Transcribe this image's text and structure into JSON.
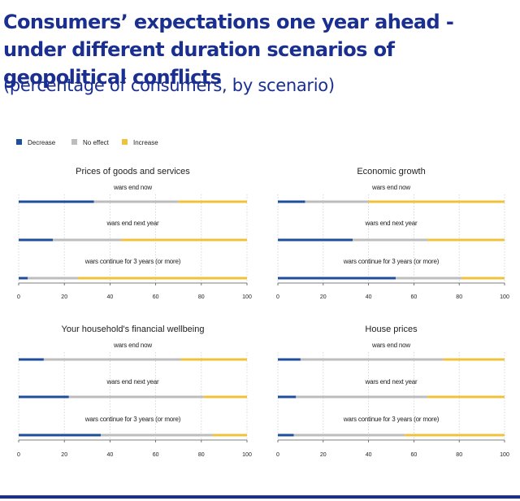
{
  "title": "Consumers’ expectations one year ahead - under different duration scenarios of geopolitical conflicts",
  "subtitle": "(percentage of consumers, by scenario)",
  "colors": {
    "Decrease": "#1f4e9a",
    "No effect": "#bdbdbd",
    "Increase": "#f0c13b",
    "title": "#1a2f8f"
  },
  "chart_data": {
    "type": "bar",
    "stacked": true,
    "orientation": "horizontal",
    "legend": [
      "Decrease",
      "No effect",
      "Increase"
    ],
    "legend_position": "top-left",
    "x_ticks": [
      "0",
      "20",
      "40",
      "60",
      "80",
      "100"
    ],
    "xlim": [
      0,
      100
    ],
    "panels": [
      {
        "title": "Prices of goods and services",
        "scenarios": [
          {
            "label": "wars end now",
            "values": [
              33,
              37,
              30
            ]
          },
          {
            "label": "wars end next year",
            "values": [
              15,
              30,
              55
            ]
          },
          {
            "label": "wars continue for 3 years (or more)",
            "values": [
              4,
              22,
              74
            ]
          }
        ]
      },
      {
        "title": "Economic growth",
        "scenarios": [
          {
            "label": "wars end now",
            "values": [
              12,
              28,
              60
            ]
          },
          {
            "label": "wars end next year",
            "values": [
              33,
              33,
              34
            ]
          },
          {
            "label": "wars continue for 3 years (or more)",
            "values": [
              52,
              29,
              19
            ]
          }
        ]
      },
      {
        "title": "Your household's financial wellbeing",
        "scenarios": [
          {
            "label": "wars end now",
            "values": [
              11,
              60,
              29
            ]
          },
          {
            "label": "wars end next year",
            "values": [
              22,
              59,
              19
            ]
          },
          {
            "label": "wars continue for 3 years (or more)",
            "values": [
              36,
              49,
              15
            ]
          }
        ]
      },
      {
        "title": "House prices",
        "scenarios": [
          {
            "label": "wars end now",
            "values": [
              10,
              63,
              27
            ]
          },
          {
            "label": "wars end next year",
            "values": [
              8,
              58,
              34
            ]
          },
          {
            "label": "wars continue for 3 years (or more)",
            "values": [
              7,
              49,
              44
            ]
          }
        ]
      }
    ]
  }
}
